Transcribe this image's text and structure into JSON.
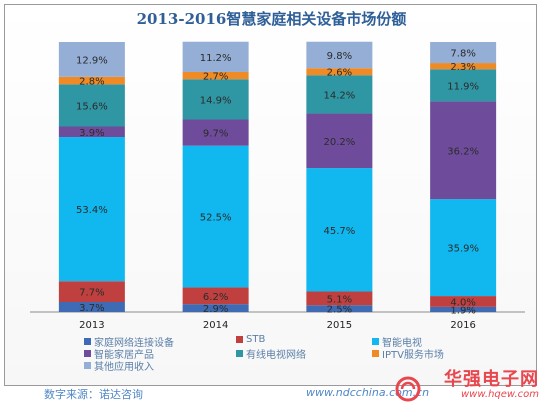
{
  "title": "2013-2016智慧家庭相关设备市场份额",
  "chart_data": {
    "type": "bar",
    "stacked": true,
    "categories": [
      "2013",
      "2014",
      "2015",
      "2016"
    ],
    "ylim": [
      0,
      100
    ],
    "grid": false,
    "legend_position": "bottom",
    "series": [
      {
        "name": "家庭网络连接设备",
        "color": "#3e6bb3",
        "values": [
          3.7,
          2.9,
          2.5,
          1.9
        ],
        "labels": [
          "3.7%",
          "2.9%",
          "2.5%",
          "1.9%"
        ]
      },
      {
        "name": "STB",
        "color": "#c0403f",
        "values": [
          7.7,
          6.2,
          5.1,
          4.0
        ],
        "labels": [
          "7.7%",
          "6.2%",
          "5.1%",
          "4.0%"
        ]
      },
      {
        "name": "智能电视",
        "color": "#10b8ef",
        "values": [
          53.4,
          52.5,
          45.7,
          35.9
        ],
        "labels": [
          "53.4%",
          "52.5%",
          "45.7%",
          "35.9%"
        ]
      },
      {
        "name": "智能家居产品",
        "color": "#6e4c9b",
        "values": [
          3.9,
          9.7,
          20.2,
          36.2
        ],
        "labels": [
          "3.9%",
          "9.7%",
          "20.2%",
          "36.2%"
        ]
      },
      {
        "name": "有线电视网络",
        "color": "#2f96a4",
        "values": [
          15.6,
          14.9,
          14.2,
          11.9
        ],
        "labels": [
          "15.6%",
          "14.9%",
          "14.2%",
          "11.9%"
        ]
      },
      {
        "name": "IPTV服务市场",
        "color": "#f08a24",
        "values": [
          2.8,
          2.7,
          2.6,
          2.3
        ],
        "labels": [
          "2.8%",
          "2.7%",
          "2.6%",
          "2.3%"
        ]
      },
      {
        "name": "其他应用收入",
        "color": "#94aed6",
        "values": [
          12.9,
          11.2,
          9.8,
          7.8
        ],
        "labels": [
          "12.9%",
          "11.2%",
          "9.8%",
          "7.8%"
        ]
      }
    ]
  },
  "footer": {
    "source": "数字来源：诺达咨询",
    "url": "www.ndcchina.com.cn",
    "brand_name": "华强电子网",
    "brand_url": "www.hqew.com"
  }
}
